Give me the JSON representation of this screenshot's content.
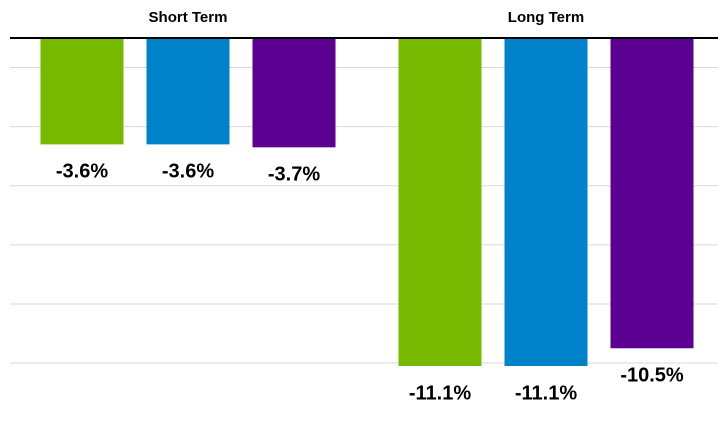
{
  "chart_data": {
    "type": "bar",
    "categories": [
      "Short Term",
      "Long Term"
    ],
    "series": [
      {
        "color": "#76b900",
        "values": [
          -3.6,
          -11.1
        ],
        "value_labels": [
          "-3.6%",
          "-11.1%"
        ]
      },
      {
        "color": "#0082ca",
        "values": [
          -3.6,
          -11.1
        ],
        "value_labels": [
          "-3.6%",
          "-11.1%"
        ]
      },
      {
        "color": "#5c0092",
        "values": [
          -3.7,
          -10.5
        ],
        "value_labels": [
          "-3.7%",
          "-10.5%"
        ]
      }
    ],
    "ylim": [
      -12,
      0
    ],
    "yticks": [
      -11,
      -9,
      -7,
      -5,
      -3,
      -1
    ],
    "grid": true
  }
}
